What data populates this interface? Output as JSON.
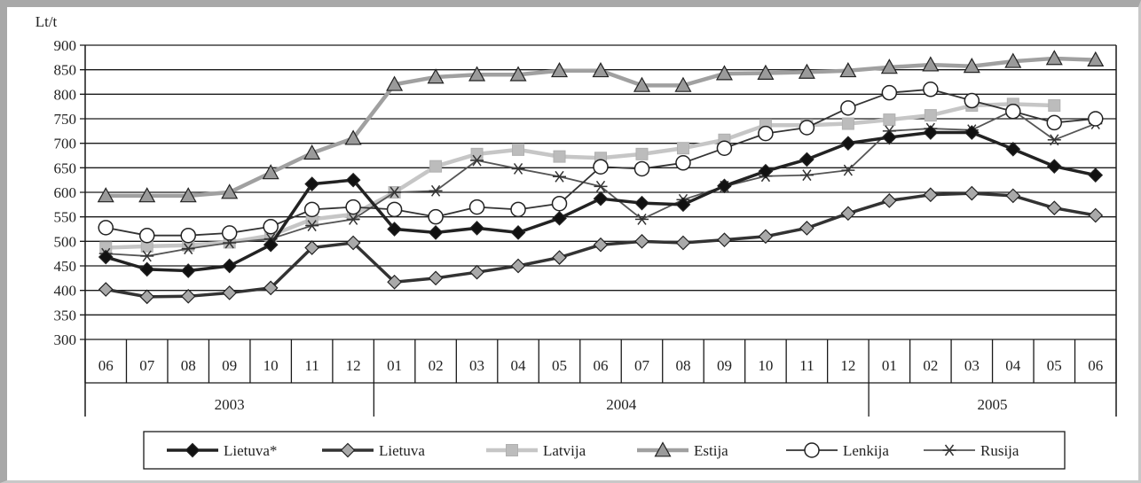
{
  "chart_data": {
    "type": "line",
    "ylabel": "Lt/t",
    "ylim": [
      300,
      900
    ],
    "yticks": [
      300,
      350,
      400,
      450,
      500,
      550,
      600,
      650,
      700,
      750,
      800,
      850,
      900
    ],
    "grid": true,
    "legend_position": "bottom",
    "categories": [
      "06",
      "07",
      "08",
      "09",
      "10",
      "11",
      "12",
      "01",
      "02",
      "03",
      "04",
      "05",
      "06",
      "07",
      "08",
      "09",
      "10",
      "11",
      "12",
      "01",
      "02",
      "03",
      "04",
      "05",
      "06"
    ],
    "years": [
      {
        "label": "2003",
        "span": 7
      },
      {
        "label": "2004",
        "span": 12
      },
      {
        "label": "2005",
        "span": 6
      }
    ],
    "series": [
      {
        "name": "Lietuva*",
        "color": "#222222",
        "marker": "diamond-filled",
        "width": 3.5,
        "values": [
          468,
          443,
          440,
          450,
          493,
          617,
          625,
          525,
          518,
          527,
          518,
          547,
          587,
          578,
          575,
          613,
          643,
          667,
          700,
          712,
          722,
          722,
          688,
          653,
          635
        ]
      },
      {
        "name": "Lietuva",
        "color": "#333333",
        "marker": "diamond-gray",
        "width": 3.5,
        "values": [
          402,
          387,
          388,
          395,
          405,
          487,
          497,
          417,
          425,
          437,
          450,
          467,
          493,
          500,
          497,
          503,
          510,
          527,
          557,
          583,
          595,
          598,
          593,
          568,
          553
        ]
      },
      {
        "name": "Latvija",
        "color": "#c6c6c6",
        "marker": "square",
        "width": 4.5,
        "values": [
          487,
          490,
          492,
          498,
          512,
          545,
          555,
          600,
          653,
          678,
          687,
          673,
          670,
          678,
          690,
          707,
          737,
          737,
          740,
          748,
          757,
          777,
          780,
          777,
          null
        ]
      },
      {
        "name": "Estija",
        "color": "#a0a0a0",
        "marker": "triangle",
        "width": 4.5,
        "values": [
          593,
          593,
          593,
          600,
          640,
          680,
          710,
          820,
          835,
          840,
          840,
          848,
          848,
          818,
          818,
          842,
          843,
          845,
          848,
          855,
          860,
          857,
          867,
          873,
          870
        ]
      },
      {
        "name": "Lenkija",
        "color": "#333333",
        "marker": "circle",
        "width": 1.8,
        "values": [
          528,
          512,
          512,
          517,
          530,
          565,
          570,
          565,
          550,
          570,
          565,
          577,
          652,
          648,
          660,
          690,
          720,
          732,
          772,
          803,
          810,
          787,
          765,
          742,
          750
        ]
      },
      {
        "name": "Rusija",
        "color": "#555555",
        "marker": "asterisk",
        "width": 1.8,
        "values": [
          475,
          470,
          485,
          497,
          505,
          532,
          545,
          600,
          603,
          665,
          648,
          632,
          612,
          545,
          585,
          612,
          633,
          635,
          645,
          725,
          730,
          727,
          767,
          707,
          740
        ]
      }
    ]
  }
}
